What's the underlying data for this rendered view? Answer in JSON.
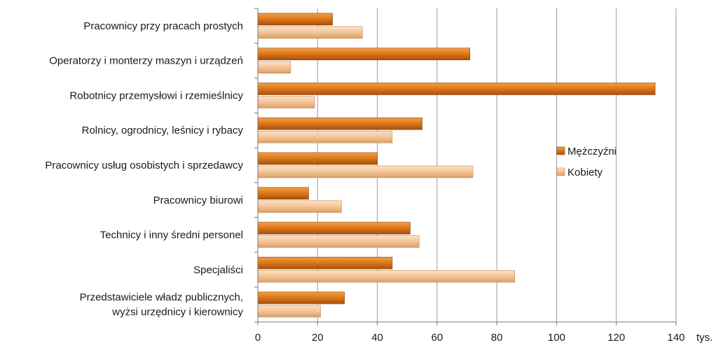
{
  "chart_data": {
    "type": "bar",
    "orientation": "horizontal",
    "categories": [
      [
        "Pracownicy przy pracach prostych"
      ],
      [
        "Operatorzy i monterzy maszyn i urządzeń"
      ],
      [
        "Robotnicy przemysłowi i rzemieślnicy"
      ],
      [
        "Rolnicy, ogrodnicy, leśnicy i rybacy"
      ],
      [
        "Pracownicy usług osobistych i sprzedawcy"
      ],
      [
        "Pracownicy biurowi"
      ],
      [
        "Technicy i inny średni personel"
      ],
      [
        "Specjaliści"
      ],
      [
        "Przedstawiciele władz publicznych,",
        "wyżsi urzędnicy i kierownicy"
      ]
    ],
    "series": [
      {
        "name": "Mężczyźni",
        "color": "#e07a1a",
        "values": [
          25,
          71,
          133,
          55,
          40,
          17,
          51,
          45,
          29
        ]
      },
      {
        "name": "Kobiety",
        "color": "#f5c79a",
        "values": [
          35,
          11,
          19,
          45,
          72,
          28,
          54,
          86,
          21
        ]
      }
    ],
    "xticks": [
      0,
      20,
      40,
      60,
      80,
      100,
      120,
      140
    ],
    "xlim": [
      0,
      140
    ],
    "unit_label": "tys.",
    "grid": true,
    "legend_position": "right"
  }
}
